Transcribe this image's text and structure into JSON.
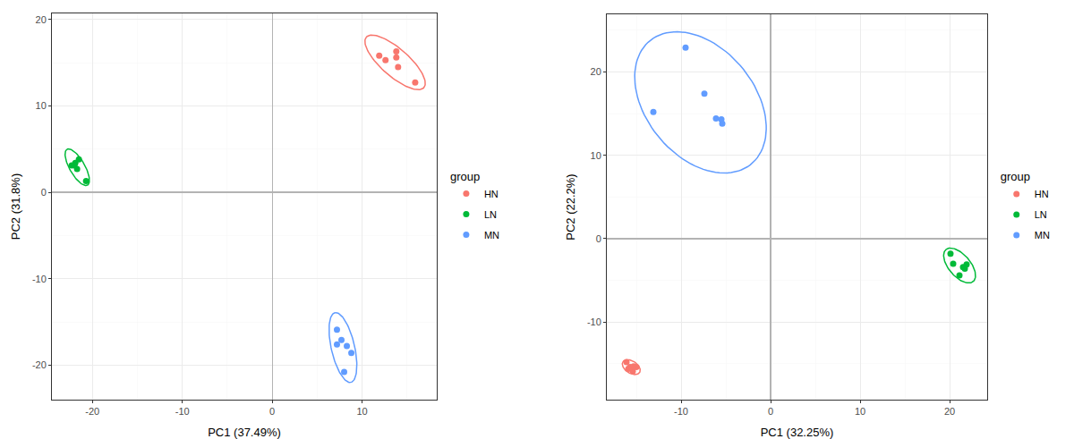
{
  "chart_data": [
    {
      "type": "scatter",
      "x_label": "PC1 (37.49%)",
      "y_label": "PC2 (31.8%)",
      "legend_title": "group",
      "legend": "right",
      "grid": true,
      "xlim": [
        -24.5,
        18.3
      ],
      "ylim": [
        -24,
        20.7
      ],
      "xticks": [
        -20,
        -10,
        0,
        10
      ],
      "yticks": [
        -20,
        -10,
        0,
        10,
        20
      ],
      "series": [
        {
          "name": "HN",
          "color": "#F8766D",
          "x": [
            11.9,
            12.6,
            13.8,
            13.8,
            14.0,
            15.9
          ],
          "values": [
            15.8,
            15.3,
            16.3,
            15.6,
            14.5,
            12.7
          ]
        },
        {
          "name": "LN",
          "color": "#00BA38",
          "x": [
            -22.3,
            -21.9,
            -21.5,
            -21.7,
            -22.0,
            -20.7
          ],
          "values": [
            3.1,
            3.4,
            3.8,
            2.7,
            3.1,
            1.3
          ]
        },
        {
          "name": "MN",
          "color": "#619CFF",
          "x": [
            7.2,
            7.2,
            7.7,
            8.3,
            8.8,
            8.0
          ],
          "values": [
            -15.9,
            -17.6,
            -17.1,
            -17.8,
            -18.6,
            -20.8
          ]
        }
      ]
    },
    {
      "type": "scatter",
      "x_label": "PC1 (32.25%)",
      "y_label": "PC2 (22.2%)",
      "legend_title": "group",
      "legend": "right",
      "grid": true,
      "xlim": [
        -18.3,
        24.2
      ],
      "ylim": [
        -19.3,
        26.9
      ],
      "xticks": [
        -10,
        0,
        10,
        20
      ],
      "yticks": [
        -10,
        0,
        10,
        20
      ],
      "series": [
        {
          "name": "HN",
          "color": "#F8766D",
          "x": [
            -16.1,
            -15.7,
            -15.4,
            -15.0,
            -15.9,
            -15.3
          ],
          "values": [
            -14.8,
            -15.4,
            -15.9,
            -15.4,
            -15.6,
            -15.3
          ]
        },
        {
          "name": "LN",
          "color": "#00BA38",
          "x": [
            20.1,
            20.4,
            21.1,
            21.5,
            21.9,
            21.7
          ],
          "values": [
            -1.8,
            -3.0,
            -4.4,
            -3.4,
            -3.1,
            -3.6
          ]
        },
        {
          "name": "MN",
          "color": "#619CFF",
          "x": [
            -9.5,
            -13.1,
            -7.4,
            -6.1,
            -5.5,
            -5.4
          ],
          "values": [
            22.9,
            15.2,
            17.4,
            14.4,
            14.3,
            13.8
          ]
        }
      ]
    }
  ]
}
